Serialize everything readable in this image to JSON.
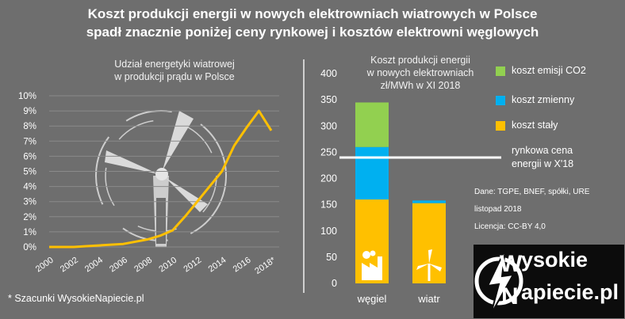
{
  "title_line1": "Koszt produkcji energii w nowych elektrowniach wiatrowych w Polsce",
  "title_line2": "spadł znacznie poniżej ceny rynkowej i kosztów elektrowni węglowych",
  "footnote": "* Szacunki WysokieNapiecie.pl",
  "logo": {
    "line1": "ysokie",
    "line2": "apiecie.pl",
    "letter1": "W",
    "letter2": "N"
  },
  "colors": {
    "background": "#6e6e6e",
    "line": "#ffc000",
    "co2": "#92d050",
    "variable": "#00b0f0",
    "fixed": "#ffc000",
    "market": "#ffffff"
  },
  "chart_data": [
    {
      "type": "line",
      "title": "Udział energetyki wiatrowej w produkcji prądu w Polsce",
      "title_line1": "Udział energetyki wiatrowej",
      "title_line2": "w produkcji prądu w Polsce",
      "x": [
        2000,
        2001,
        2002,
        2003,
        2004,
        2005,
        2006,
        2007,
        2008,
        2009,
        2010,
        2011,
        2012,
        2013,
        2014,
        2015,
        2016,
        2017,
        2018
      ],
      "x_tick_labels": [
        "2000",
        "2002",
        "2004",
        "2006",
        "2008",
        "2010",
        "2012",
        "2014",
        "2016",
        "2018*"
      ],
      "x_ticks": [
        2000,
        2002,
        2004,
        2006,
        2008,
        2010,
        2012,
        2014,
        2016,
        2018
      ],
      "values": [
        0.0,
        0.0,
        0.0,
        0.05,
        0.1,
        0.15,
        0.2,
        0.35,
        0.5,
        0.75,
        1.1,
        2.0,
        3.0,
        4.0,
        5.0,
        6.7,
        7.9,
        9.0,
        7.7
      ],
      "ylim": [
        0,
        10
      ],
      "y_ticks": [
        0,
        1,
        2,
        3,
        4,
        5,
        6,
        7,
        8,
        9,
        10
      ],
      "y_tick_labels": [
        "0%",
        "1%",
        "2%",
        "3%",
        "4%",
        "5%",
        "6%",
        "7%",
        "8%",
        "9%",
        "10%"
      ],
      "grid": true,
      "icon": "wind-turbine-icon"
    },
    {
      "type": "bar",
      "title": "Koszt produkcji energii w nowych elektrowniach zł/MWh w XI 2018",
      "title_line1": "Koszt produkcji energii",
      "title_line2": "w nowych elektrowniach",
      "title_line3": "zł/MWh w XI 2018",
      "categories": [
        "węgiel",
        "wiatr"
      ],
      "series": [
        {
          "name": "koszt stały",
          "values": [
            160,
            153
          ]
        },
        {
          "name": "koszt zmienny",
          "values": [
            100,
            5
          ]
        },
        {
          "name": "koszt emisji CO2",
          "values": [
            85,
            0
          ]
        }
      ],
      "stacked": true,
      "ylim": [
        0,
        400
      ],
      "y_ticks": [
        0,
        50,
        100,
        150,
        200,
        250,
        300,
        350,
        400
      ],
      "reference_line": {
        "value": 240,
        "label_line1": "rynkowa cena",
        "label_line2": "energii w X'18"
      },
      "legend": [
        "koszt emisji CO2",
        "koszt zmienny",
        "koszt stały"
      ],
      "legend_placement": "right",
      "notes": [
        "Dane: TGPE, BNEF, spółki, URE",
        "listopad 2018",
        "Licencja: CC-BY  4,0"
      ],
      "icons": [
        "power-plant-icon",
        "wind-turbine-icon"
      ]
    }
  ]
}
